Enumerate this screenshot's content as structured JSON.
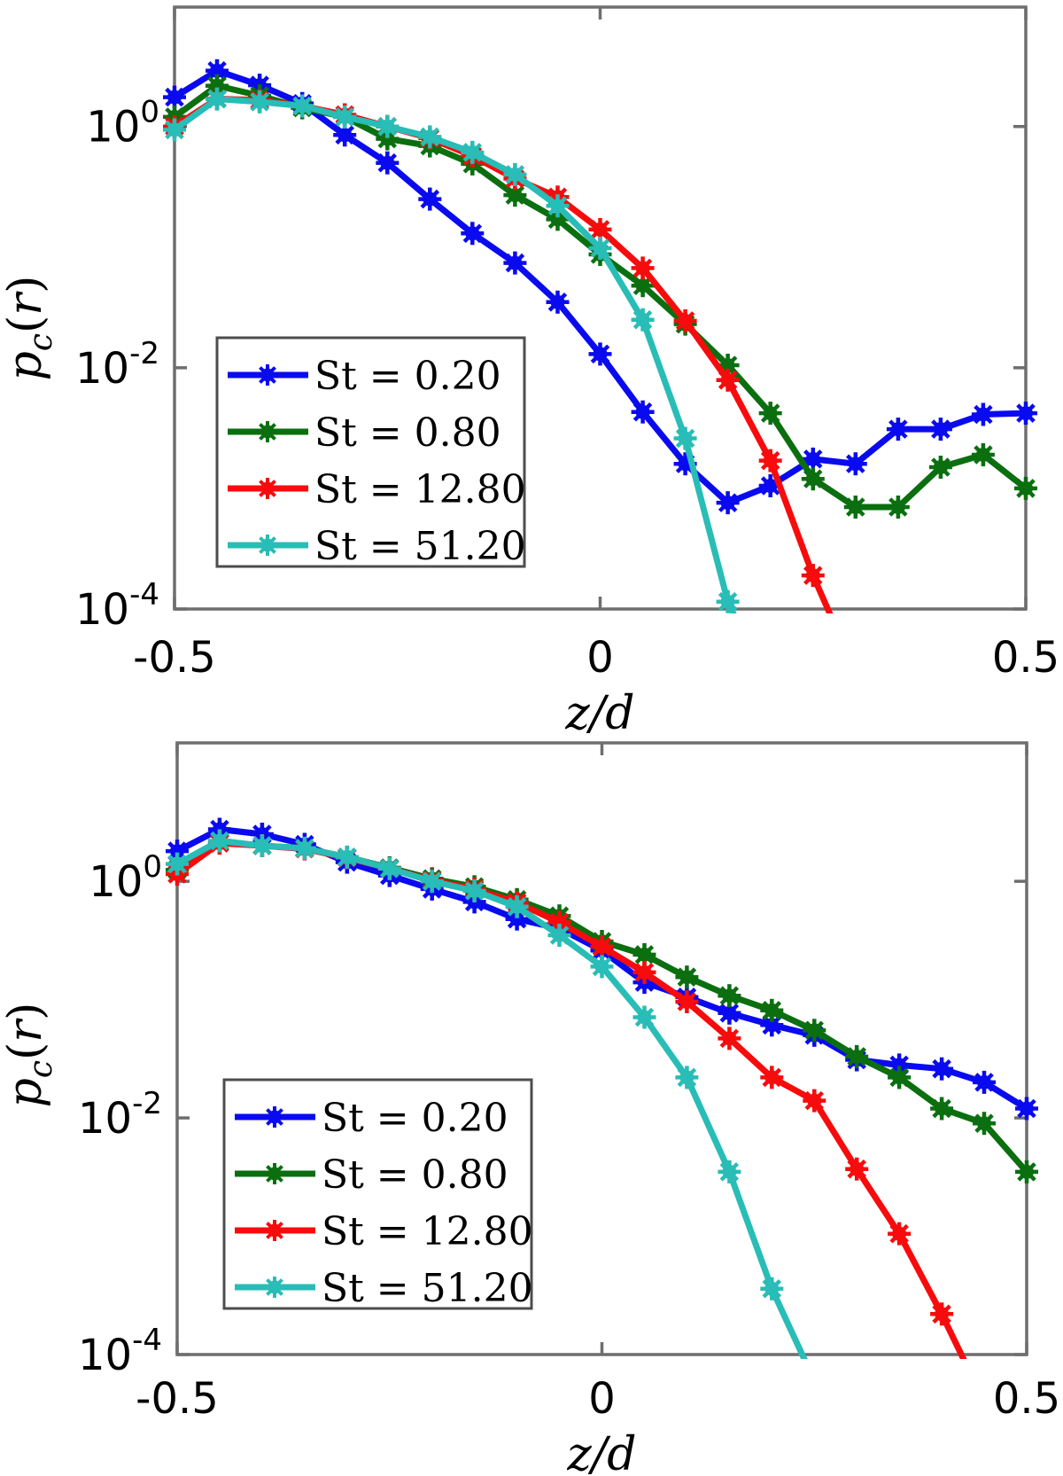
{
  "figure": {
    "background": "#ffffff"
  },
  "colors": {
    "blue": "#0a0af0",
    "green": "#0b6f10",
    "red": "#f80b0c",
    "teal": "#28bdb6",
    "axis": "#6e6e6e",
    "legend_border": "#4d4d4d",
    "text": "#000000"
  },
  "axes": {
    "xlabel": "z/d",
    "ylabel_main": "p",
    "ylabel_sub": "c",
    "ylabel_open": "(",
    "ylabel_var": "r",
    "ylabel_close": ")",
    "x_ticks": [
      {
        "value": -0.5,
        "label": "-0.5"
      },
      {
        "value": 0,
        "label": "0"
      },
      {
        "value": 0.5,
        "label": "0.5"
      }
    ],
    "y_ticks": [
      {
        "exp": 0,
        "base": "10",
        "exp_label": "0"
      },
      {
        "exp": -2,
        "base": "10",
        "exp_label": "-2"
      },
      {
        "exp": -4,
        "base": "10",
        "exp_label": "-4"
      }
    ]
  },
  "legend": {
    "items": [
      {
        "label": "St = 0.20",
        "color": "blue"
      },
      {
        "label": "St = 0.80",
        "color": "green"
      },
      {
        "label": "St = 12.80",
        "color": "red"
      },
      {
        "label": "St = 51.20",
        "color": "teal"
      }
    ]
  },
  "chart_data": [
    {
      "type": "line",
      "title": "",
      "xlabel": "z/d",
      "ylabel": "pc(r)",
      "xlim": [
        -0.5,
        0.5
      ],
      "ylim_log10": [
        -4,
        0.99
      ],
      "grid": false,
      "legend_position": "lower-left",
      "x": [
        -0.5,
        -0.45,
        -0.4,
        -0.35,
        -0.3,
        -0.25,
        -0.2,
        -0.15,
        -0.1,
        -0.05,
        0,
        0.05,
        0.1,
        0.15,
        0.2,
        0.25,
        0.3,
        0.35,
        0.4,
        0.45,
        0.5
      ],
      "series": [
        {
          "name": "St = 0.20",
          "color": "blue",
          "values": [
            1.75,
            2.9,
            2.2,
            1.55,
            0.85,
            0.5,
            0.25,
            0.13,
            0.074,
            0.035,
            0.013,
            0.0043,
            0.0016,
            0.00076,
            0.00105,
            0.00175,
            0.0016,
            0.0031,
            0.0031,
            0.0041,
            0.0042
          ]
        },
        {
          "name": "St = 0.80",
          "color": "green",
          "values": [
            1.2,
            2.18,
            1.8,
            1.43,
            1.2,
            0.79,
            0.69,
            0.49,
            0.27,
            0.17,
            0.087,
            0.048,
            0.023,
            0.0105,
            0.0042,
            0.0012,
            0.0007,
            0.0007,
            0.0015,
            0.0019,
            0.001
          ]
        },
        {
          "name": "St = 12.80",
          "color": "red",
          "values": [
            1.0,
            1.7,
            1.65,
            1.48,
            1.25,
            1.0,
            0.8,
            0.57,
            0.37,
            0.26,
            0.14,
            0.067,
            0.0245,
            0.0079,
            0.0017,
            0.00019,
            3e-05,
            null,
            null,
            null,
            null
          ]
        },
        {
          "name": "St = 51.20",
          "color": "teal",
          "values": [
            0.94,
            1.69,
            1.6,
            1.48,
            1.2,
            1.0,
            0.82,
            0.61,
            0.4,
            0.22,
            0.098,
            0.025,
            0.0026,
            0.000115,
            2e-05,
            null,
            null,
            null,
            null,
            null,
            null
          ]
        }
      ]
    },
    {
      "type": "line",
      "title": "",
      "xlabel": "z/d",
      "ylabel": "pc(r)",
      "xlim": [
        -0.5,
        0.5
      ],
      "ylim_log10": [
        -4,
        1.17
      ],
      "grid": false,
      "legend_position": "lower-left",
      "x": [
        -0.5,
        -0.45,
        -0.4,
        -0.35,
        -0.3,
        -0.25,
        -0.2,
        -0.15,
        -0.1,
        -0.05,
        0,
        0.05,
        0.1,
        0.15,
        0.2,
        0.25,
        0.3,
        0.35,
        0.4,
        0.45,
        0.5
      ],
      "series": [
        {
          "name": "St = 0.20",
          "color": "blue",
          "values": [
            1.8,
            2.75,
            2.5,
            2.05,
            1.45,
            1.12,
            0.86,
            0.67,
            0.48,
            0.4,
            0.26,
            0.14,
            0.105,
            0.077,
            0.061,
            0.05,
            0.031,
            0.028,
            0.026,
            0.02,
            0.012
          ]
        },
        {
          "name": "St = 0.80",
          "color": "green",
          "values": [
            1.25,
            2.15,
            2.0,
            1.9,
            1.6,
            1.3,
            1.05,
            0.9,
            0.7,
            0.51,
            0.31,
            0.24,
            0.155,
            0.108,
            0.081,
            0.055,
            0.033,
            0.022,
            0.012,
            0.009,
            0.0035
          ]
        },
        {
          "name": "St = 12.80",
          "color": "red",
          "values": [
            1.15,
            2.1,
            2.0,
            1.88,
            1.58,
            1.28,
            1.02,
            0.86,
            0.66,
            0.45,
            0.28,
            0.17,
            0.096,
            0.047,
            0.022,
            0.014,
            0.0037,
            0.00105,
            0.00022,
            4e-05,
            null
          ]
        },
        {
          "name": "St = 51.20",
          "color": "teal",
          "values": [
            1.4,
            2.2,
            2.0,
            1.9,
            1.6,
            1.28,
            1.0,
            0.83,
            0.61,
            0.35,
            0.19,
            0.071,
            0.022,
            0.0035,
            0.00036,
            6e-05,
            null,
            null,
            null,
            null,
            null
          ]
        }
      ]
    }
  ]
}
